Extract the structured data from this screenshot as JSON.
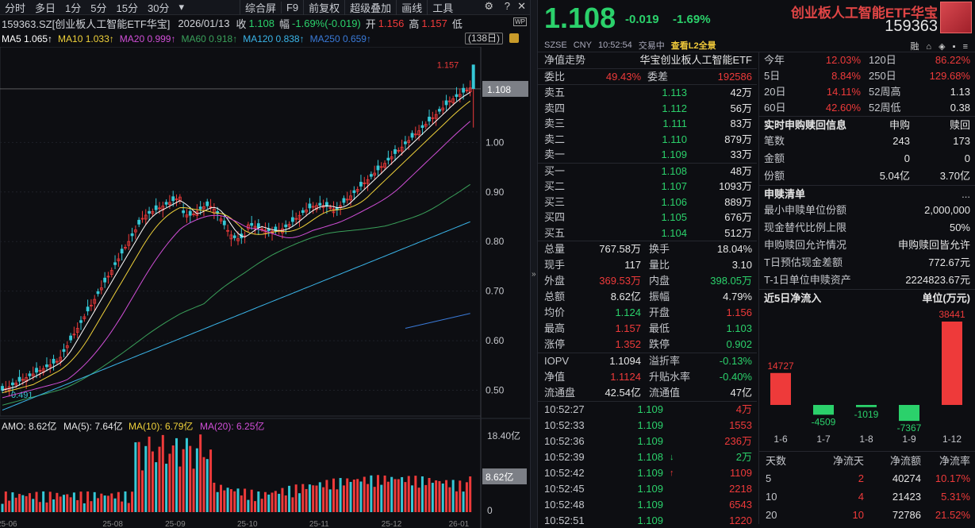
{
  "toolbar": {
    "periods": [
      "分时",
      "多日",
      "1分",
      "5分",
      "15分",
      "30分",
      "▾"
    ],
    "tools": [
      "综合屏",
      "F9",
      "前复权",
      "超级叠加",
      "画线",
      "工具"
    ]
  },
  "info": {
    "code_name": "159363.SZ[创业板人工智能ETF华宝]",
    "date": "2026/01/13",
    "close_label": "收",
    "close": "1.108",
    "range_label": "幅",
    "range": "-1.69%(-0.019)",
    "open_label": "开",
    "open": "1.156",
    "high_label": "高",
    "high": "1.157",
    "low_label": "低"
  },
  "ma": {
    "ma5": "MA5 1.065↑",
    "ma10": "MA10 1.033↑",
    "ma20": "MA20 0.999↑",
    "ma60": "MA60 0.918↑",
    "ma120": "MA120 0.838↑",
    "ma250": "MA250 0.659↑",
    "days": "(138日)"
  },
  "chart_data": {
    "type": "candlestick",
    "price_axis": [
      "1.108",
      "1.00",
      "0.90",
      "0.80",
      "0.70",
      "0.60",
      "0.50"
    ],
    "annotations": {
      "high": "1.157",
      "low": "0.491"
    },
    "x_ticks": [
      "25-06",
      "25-08",
      "25-09",
      "25-10",
      "25-11",
      "25-12",
      "26-01"
    ],
    "amo_label": "AMO: 8.62亿",
    "amo_ma5": "MA(5): 7.64亿",
    "amo_ma10": "MA(10): 6.79亿",
    "amo_ma20": "MA(20): 6.25亿",
    "vol_axis": [
      "18.40亿",
      "8.62亿",
      "0"
    ]
  },
  "quote": {
    "price": "1.108",
    "change": "-0.019",
    "percent": "-1.69%",
    "etf_name": "创业板人工智能ETF华宝",
    "etf_code": "159363",
    "sub": [
      "SZSE",
      "CNY",
      "10:52:54",
      "交易中"
    ],
    "l2": "查看L2全景",
    "sub_icons": "融 ⌂ ◈ ▪ ≡"
  },
  "nav": {
    "label": "净值走势",
    "name": "华宝创业板人工智能ETF"
  },
  "ratio": {
    "k1": "委比",
    "v1": "49.43%",
    "k2": "委差",
    "v2": "192586"
  },
  "asks": [
    {
      "label": "卖五",
      "price": "1.113",
      "vol": "42万"
    },
    {
      "label": "卖四",
      "price": "1.112",
      "vol": "56万"
    },
    {
      "label": "卖三",
      "price": "1.111",
      "vol": "83万"
    },
    {
      "label": "卖二",
      "price": "1.110",
      "vol": "879万"
    },
    {
      "label": "卖一",
      "price": "1.109",
      "vol": "33万"
    }
  ],
  "bids": [
    {
      "label": "买一",
      "price": "1.108",
      "vol": "48万"
    },
    {
      "label": "买二",
      "price": "1.107",
      "vol": "1093万"
    },
    {
      "label": "买三",
      "price": "1.106",
      "vol": "889万"
    },
    {
      "label": "买四",
      "price": "1.105",
      "vol": "676万"
    },
    {
      "label": "买五",
      "price": "1.104",
      "vol": "512万"
    }
  ],
  "stats": [
    {
      "k": "总量",
      "v": "767.58万",
      "vc": "white",
      "k2": "换手",
      "v2": "18.04%",
      "v2c": "white"
    },
    {
      "k": "现手",
      "v": "117",
      "vc": "white",
      "k2": "量比",
      "v2": "3.10",
      "v2c": "white"
    },
    {
      "k": "外盘",
      "v": "369.53万",
      "vc": "red",
      "k2": "内盘",
      "v2": "398.05万",
      "v2c": "green"
    },
    {
      "k": "总额",
      "v": "8.62亿",
      "vc": "white",
      "k2": "振幅",
      "v2": "4.79%",
      "v2c": "white"
    },
    {
      "k": "均价",
      "v": "1.124",
      "vc": "green",
      "k2": "开盘",
      "v2": "1.156",
      "v2c": "red"
    },
    {
      "k": "最高",
      "v": "1.157",
      "vc": "red",
      "k2": "最低",
      "v2": "1.103",
      "v2c": "green"
    },
    {
      "k": "涨停",
      "v": "1.352",
      "vc": "red",
      "k2": "跌停",
      "v2": "0.902",
      "v2c": "green"
    }
  ],
  "iopv": [
    {
      "k": "IOPV",
      "v": "1.1094",
      "vc": "white",
      "k2": "溢折率",
      "v2": "-0.13%",
      "v2c": "green"
    },
    {
      "k": "净值",
      "v": "1.1124",
      "vc": "red",
      "k2": "升贴水率",
      "v2": "-0.40%",
      "v2c": "green"
    },
    {
      "k": "流通盘",
      "v": "42.54亿",
      "vc": "white",
      "k2": "流通值",
      "v2": "47亿",
      "v2c": "white"
    }
  ],
  "ticks": [
    {
      "t": "10:52:27",
      "p": "1.109",
      "a": "",
      "v": "4万",
      "vc": "red"
    },
    {
      "t": "10:52:33",
      "p": "1.109",
      "a": "",
      "v": "1553",
      "vc": "red"
    },
    {
      "t": "10:52:36",
      "p": "1.109",
      "a": "",
      "v": "236万",
      "vc": "red"
    },
    {
      "t": "10:52:39",
      "p": "1.108",
      "a": "↓",
      "v": "2万",
      "vc": "green"
    },
    {
      "t": "10:52:42",
      "p": "1.109",
      "a": "↑",
      "v": "1109",
      "vc": "red"
    },
    {
      "t": "10:52:45",
      "p": "1.109",
      "a": "",
      "v": "2218",
      "vc": "red"
    },
    {
      "t": "10:52:48",
      "p": "1.109",
      "a": "",
      "v": "6543",
      "vc": "red"
    },
    {
      "t": "10:52:51",
      "p": "1.109",
      "a": "",
      "v": "1220",
      "vc": "red"
    }
  ],
  "periods": [
    {
      "k": "今年",
      "v": "12.03%",
      "k2": "120日",
      "v2": "86.22%",
      "v2c": "red"
    },
    {
      "k": "5日",
      "v": "8.84%",
      "k2": "250日",
      "v2": "129.68%",
      "v2c": "red"
    },
    {
      "k": "20日",
      "v": "14.11%",
      "k2": "52周高",
      "v2": "1.13",
      "v2c": "white"
    },
    {
      "k": "60日",
      "v": "42.60%",
      "k2": "52周低",
      "v2": "0.38",
      "v2c": "white"
    }
  ],
  "subscr": {
    "title": "实时申购赎回信息",
    "h1": "申购",
    "h2": "赎回",
    "rows": [
      {
        "a": "笔数",
        "b": "243",
        "c": "173"
      },
      {
        "a": "金额",
        "b": "0",
        "c": "0"
      },
      {
        "a": "份额",
        "b": "5.04亿",
        "c": "3.70亿"
      }
    ]
  },
  "list": {
    "title": "申赎清单",
    "more": "...",
    "rows": [
      {
        "k": "最小申赎单位份额",
        "v": "2,000,000"
      },
      {
        "k": "现金替代比例上限",
        "v": "50%"
      },
      {
        "k": "申购赎回允许情况",
        "v": "申购赎回皆允许"
      },
      {
        "k": "T日预估现金差额",
        "v": "772.67元"
      },
      {
        "k": "T-1日单位申赎资产",
        "v": "2224823.67元"
      }
    ]
  },
  "flow": {
    "title": "近5日净流入",
    "unit": "单位(万元)",
    "bars": [
      {
        "date": "1-6",
        "value": 14727
      },
      {
        "date": "1-7",
        "value": -4509
      },
      {
        "date": "1-8",
        "value": -1019
      },
      {
        "date": "1-9",
        "value": -7367
      },
      {
        "date": "1-12",
        "value": 38441
      }
    ],
    "headers": [
      "天数",
      "净流天",
      "净流额",
      "净流率"
    ],
    "rows": [
      {
        "d": "5",
        "n": "2",
        "amt": "40274",
        "r": "10.17%"
      },
      {
        "d": "10",
        "n": "4",
        "amt": "21423",
        "r": "5.31%"
      },
      {
        "d": "20",
        "n": "10",
        "amt": "72786",
        "r": "21.52%"
      }
    ]
  },
  "colors": {
    "up": "#ee3a3a",
    "down": "#2bd16b",
    "bg": "#0d0e12",
    "ma5": "#ffffff",
    "ma10": "#f0d23a",
    "ma20": "#d14fd8",
    "ma60": "#3aa05a",
    "ma120": "#3ab4e8",
    "ma250": "#3a7ad8"
  }
}
